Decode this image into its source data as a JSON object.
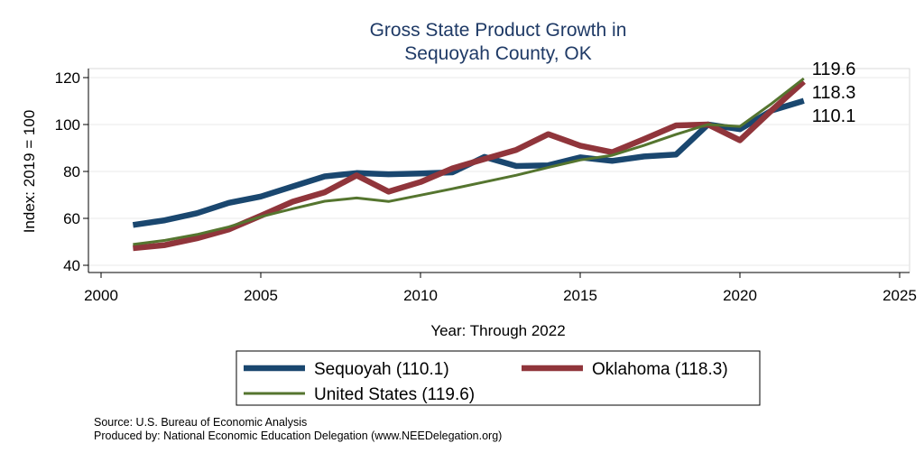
{
  "chart_data": {
    "type": "line",
    "title": [
      "Gross State Product Growth in",
      "Sequoyah County, OK"
    ],
    "xlabel": "Year: Through 2022",
    "ylabel": "Index: 2019 = 100",
    "xlim": [
      2000,
      2025
    ],
    "ylim": [
      40,
      122
    ],
    "x_ticks": [
      2000,
      2005,
      2010,
      2015,
      2020,
      2025
    ],
    "y_ticks": [
      40,
      60,
      80,
      100,
      120
    ],
    "grid": true,
    "legend_position": "bottom",
    "x": [
      2001,
      2002,
      2003,
      2004,
      2005,
      2006,
      2007,
      2008,
      2009,
      2010,
      2011,
      2012,
      2013,
      2014,
      2015,
      2016,
      2017,
      2018,
      2019,
      2020,
      2021,
      2022
    ],
    "series": [
      {
        "name": "Sequoyah",
        "legend_label": "Sequoyah  (110.1)",
        "end_label": "110.1",
        "color": "#1a476f",
        "values": [
          57.2,
          59.2,
          62.2,
          66.6,
          69.3,
          73.6,
          77.9,
          79.3,
          78.8,
          79.1,
          79.6,
          86.2,
          82.3,
          82.6,
          86.0,
          84.5,
          86.4,
          87.2,
          100.0,
          98.0,
          106.0,
          110.1
        ]
      },
      {
        "name": "Oklahoma",
        "legend_label": "Oklahoma (118.3)",
        "end_label": "118.3",
        "color": "#90353b",
        "values": [
          47.3,
          48.6,
          51.5,
          55.3,
          61.1,
          67.1,
          71.1,
          78.3,
          71.4,
          75.5,
          81.3,
          85.3,
          89.2,
          95.9,
          91.0,
          88.2,
          93.8,
          99.6,
          100.0,
          93.3,
          106.1,
          118.3
        ]
      },
      {
        "name": "United States",
        "legend_label": "United States (119.6)",
        "end_label": "119.6",
        "color": "#55752f",
        "values": [
          48.9,
          50.6,
          53.1,
          56.4,
          60.7,
          64.1,
          67.3,
          68.7,
          67.2,
          69.9,
          72.6,
          75.5,
          78.4,
          81.7,
          84.9,
          86.9,
          91.1,
          95.8,
          100.0,
          99.2,
          109.0,
          119.6
        ]
      }
    ]
  },
  "notes": {
    "source": "Source: U.S. Bureau of Economic Analysis",
    "produced": "Produced by: National Economic Education Delegation (www.NEEDelegation.org)"
  }
}
